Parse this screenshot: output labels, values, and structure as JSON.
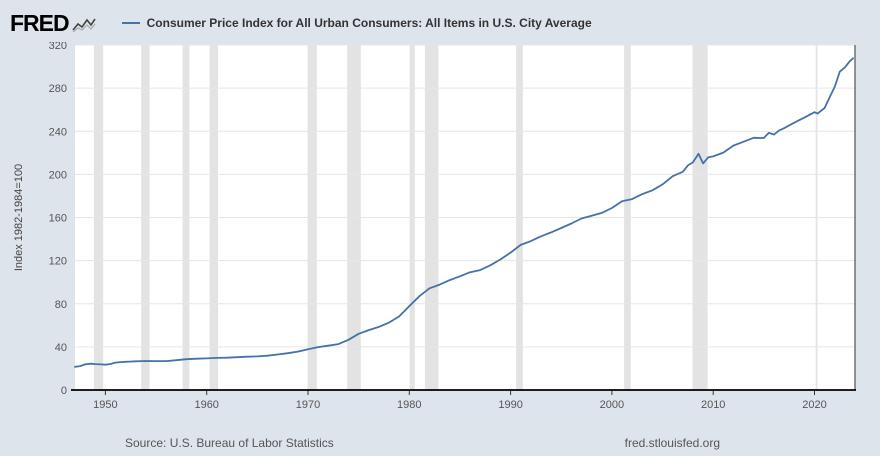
{
  "header": {
    "logo": "FRED",
    "legend_label": "Consumer Price Index for All Urban Consumers: All Items in U.S. City Average"
  },
  "footer": {
    "source": "Source: U.S. Bureau of Labor Statistics",
    "site": "fred.stlouisfed.org"
  },
  "chart_data": {
    "type": "line",
    "title": "Consumer Price Index for All Urban Consumers: All Items in U.S. City Average",
    "xlabel": "",
    "ylabel": "Index 1982-1984=100",
    "x_range": [
      1947,
      2024
    ],
    "ylim": [
      0,
      320
    ],
    "y_ticks": [
      0,
      40,
      80,
      120,
      160,
      200,
      240,
      280,
      320
    ],
    "x_ticks": [
      1950,
      1960,
      1970,
      1980,
      1990,
      2000,
      2010,
      2020
    ],
    "grid": true,
    "legend_position": "top",
    "line_color": "#4572a7",
    "recession_color": "#e3e3e3",
    "grid_color": "#e6e6e6",
    "recessions": [
      [
        1948.87,
        1949.79
      ],
      [
        1953.54,
        1954.37
      ],
      [
        1957.62,
        1958.29
      ],
      [
        1960.29,
        1961.12
      ],
      [
        1969.96,
        1970.87
      ],
      [
        1973.87,
        1975.21
      ],
      [
        1980.04,
        1980.54
      ],
      [
        1981.54,
        1982.87
      ],
      [
        1990.54,
        1991.21
      ],
      [
        2001.21,
        2001.87
      ],
      [
        2007.96,
        2009.46
      ],
      [
        2020.12,
        2020.29
      ]
    ],
    "series": [
      {
        "name": "Consumer Price Index for All Urban Consumers: All Items in U.S. City Average",
        "points": [
          [
            1947.0,
            21.5
          ],
          [
            1947.5,
            22.2
          ],
          [
            1948.0,
            23.7
          ],
          [
            1948.6,
            24.4
          ],
          [
            1949.0,
            24.0
          ],
          [
            1949.6,
            23.7
          ],
          [
            1950.0,
            23.5
          ],
          [
            1950.5,
            24.1
          ],
          [
            1951.0,
            25.4
          ],
          [
            1951.5,
            25.9
          ],
          [
            1952.0,
            26.2
          ],
          [
            1953.0,
            26.6
          ],
          [
            1954.0,
            26.9
          ],
          [
            1955.0,
            26.8
          ],
          [
            1956.0,
            26.8
          ],
          [
            1957.0,
            27.6
          ],
          [
            1958.0,
            28.6
          ],
          [
            1959.0,
            29.0
          ],
          [
            1960.0,
            29.3
          ],
          [
            1961.0,
            29.8
          ],
          [
            1962.0,
            30.0
          ],
          [
            1963.0,
            30.4
          ],
          [
            1964.0,
            30.9
          ],
          [
            1965.0,
            31.2
          ],
          [
            1966.0,
            31.8
          ],
          [
            1967.0,
            32.9
          ],
          [
            1968.0,
            34.1
          ],
          [
            1969.0,
            35.6
          ],
          [
            1970.0,
            37.8
          ],
          [
            1971.0,
            39.8
          ],
          [
            1972.0,
            41.1
          ],
          [
            1973.0,
            42.6
          ],
          [
            1974.0,
            46.6
          ],
          [
            1975.0,
            52.1
          ],
          [
            1976.0,
            55.6
          ],
          [
            1977.0,
            58.5
          ],
          [
            1978.0,
            62.5
          ],
          [
            1979.0,
            68.3
          ],
          [
            1980.0,
            77.8
          ],
          [
            1981.0,
            87.0
          ],
          [
            1982.0,
            94.3
          ],
          [
            1983.0,
            97.8
          ],
          [
            1984.0,
            101.9
          ],
          [
            1985.0,
            105.5
          ],
          [
            1986.0,
            109.3
          ],
          [
            1987.0,
            111.2
          ],
          [
            1988.0,
            115.7
          ],
          [
            1989.0,
            121.1
          ],
          [
            1990.0,
            127.4
          ],
          [
            1991.0,
            134.6
          ],
          [
            1992.0,
            138.1
          ],
          [
            1993.0,
            142.6
          ],
          [
            1994.0,
            146.2
          ],
          [
            1995.0,
            150.3
          ],
          [
            1996.0,
            154.4
          ],
          [
            1997.0,
            159.1
          ],
          [
            1998.0,
            161.6
          ],
          [
            1999.0,
            164.3
          ],
          [
            2000.0,
            168.8
          ],
          [
            2001.0,
            175.1
          ],
          [
            2002.0,
            177.1
          ],
          [
            2003.0,
            181.7
          ],
          [
            2004.0,
            185.2
          ],
          [
            2005.0,
            190.7
          ],
          [
            2006.0,
            198.3
          ],
          [
            2007.0,
            202.4
          ],
          [
            2007.5,
            208.3
          ],
          [
            2008.0,
            211.1
          ],
          [
            2008.55,
            219.1
          ],
          [
            2009.0,
            210.2
          ],
          [
            2009.5,
            215.7
          ],
          [
            2010.0,
            216.7
          ],
          [
            2011.0,
            220.2
          ],
          [
            2012.0,
            226.7
          ],
          [
            2013.0,
            230.3
          ],
          [
            2014.0,
            233.9
          ],
          [
            2015.0,
            233.7
          ],
          [
            2015.5,
            238.6
          ],
          [
            2016.0,
            236.9
          ],
          [
            2016.5,
            240.6
          ],
          [
            2017.0,
            242.8
          ],
          [
            2018.0,
            247.9
          ],
          [
            2019.0,
            252.7
          ],
          [
            2020.0,
            257.7
          ],
          [
            2020.3,
            256.4
          ],
          [
            2021.0,
            261.6
          ],
          [
            2021.5,
            271.7
          ],
          [
            2022.0,
            281.1
          ],
          [
            2022.5,
            295.3
          ],
          [
            2023.0,
            299.2
          ],
          [
            2023.5,
            305.1
          ],
          [
            2023.8,
            307.7
          ]
        ]
      }
    ]
  }
}
